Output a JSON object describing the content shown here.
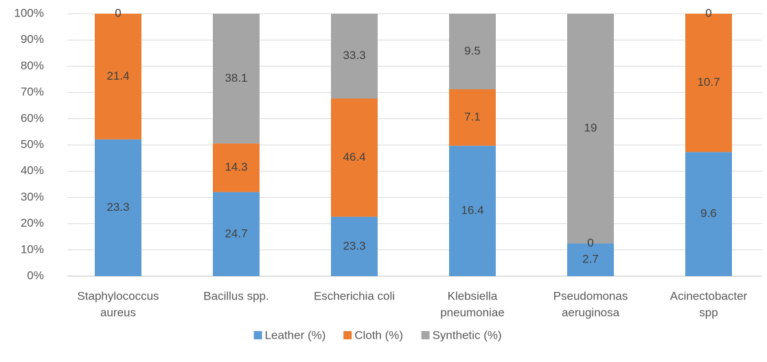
{
  "chart_data": {
    "type": "bar",
    "stacking": "percent",
    "categories": [
      [
        "Staphylococcus",
        "aureus"
      ],
      [
        "Bacillus spp."
      ],
      [
        "Escherichia  coli"
      ],
      [
        "Klebsiella",
        "pneumoniae"
      ],
      [
        "Pseudomonas",
        "aeruginosa"
      ],
      [
        "Acinectobacter",
        "spp"
      ]
    ],
    "series": [
      {
        "name": "Leather (%)",
        "color": "#5b9bd5",
        "values": [
          23.3,
          24.7,
          23.3,
          16.4,
          2.7,
          9.6
        ]
      },
      {
        "name": "Cloth (%)",
        "color": "#ed7d31",
        "values": [
          21.4,
          14.3,
          46.4,
          7.1,
          0,
          10.7
        ]
      },
      {
        "name": "Synthetic (%)",
        "color": "#a5a5a5",
        "values": [
          0,
          38.1,
          33.3,
          9.5,
          19,
          0
        ]
      }
    ],
    "ylim": [
      0,
      100
    ],
    "yticks": [
      {
        "value": 0,
        "label": "0%"
      },
      {
        "value": 10,
        "label": "10%"
      },
      {
        "value": 20,
        "label": "20%"
      },
      {
        "value": 30,
        "label": "30%"
      },
      {
        "value": 40,
        "label": "40%"
      },
      {
        "value": 50,
        "label": "50%"
      },
      {
        "value": 60,
        "label": "60%"
      },
      {
        "value": 70,
        "label": "70%"
      },
      {
        "value": 80,
        "label": "80%"
      },
      {
        "value": 90,
        "label": "90%"
      },
      {
        "value": 100,
        "label": "100%"
      }
    ],
    "grid": true,
    "legend": "bottom"
  }
}
